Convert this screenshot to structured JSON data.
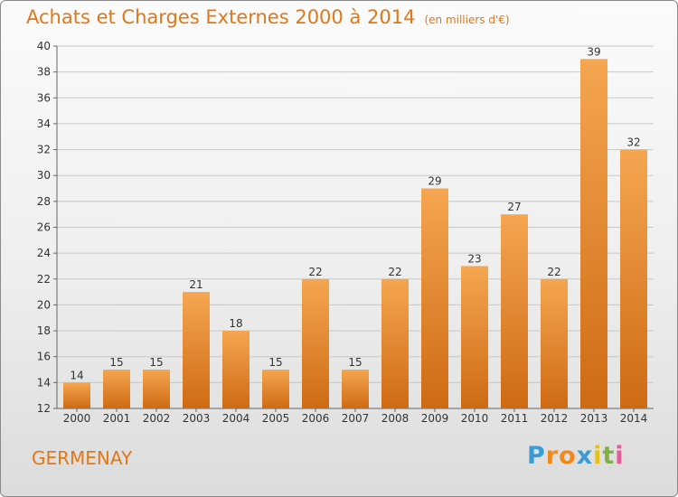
{
  "title": "Achats et Charges Externes 2000 à 2014",
  "subtitle": "(en milliers d'€)",
  "commune": "GERMENAY",
  "logo": {
    "letters": [
      "P",
      "r",
      "o",
      "x",
      "i",
      "t",
      "i"
    ],
    "colors": [
      "#3a9bd5",
      "#f08a1c",
      "#f08a1c",
      "#3a9bd5",
      "#e8c018",
      "#7cb342",
      "#e85a9a"
    ]
  },
  "colors": {
    "accent": "#e07818",
    "bar_top": "#f5a650",
    "bar_bottom": "#cf6a14"
  },
  "chart_data": {
    "type": "bar",
    "title": "Achats et Charges Externes 2000 à 2014",
    "subtitle": "(en milliers d'€)",
    "categories": [
      "2000",
      "2001",
      "2002",
      "2003",
      "2004",
      "2005",
      "2006",
      "2007",
      "2008",
      "2009",
      "2010",
      "2011",
      "2012",
      "2013",
      "2014"
    ],
    "values": [
      14,
      15,
      15,
      21,
      18,
      15,
      22,
      15,
      22,
      29,
      23,
      27,
      22,
      39,
      32
    ],
    "ylim": [
      12,
      40
    ],
    "yticks": [
      12,
      14,
      16,
      18,
      20,
      22,
      24,
      26,
      28,
      30,
      32,
      34,
      36,
      38,
      40
    ],
    "grid": true,
    "legend": "none"
  }
}
